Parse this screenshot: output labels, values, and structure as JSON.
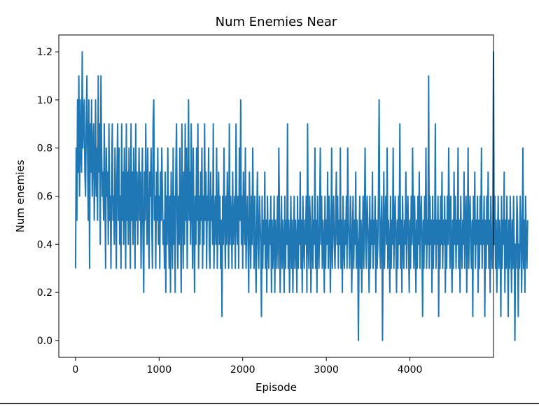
{
  "chart_data": {
    "type": "line",
    "title": "Num Enemies Near",
    "xlabel": "Episode",
    "ylabel": "Num enemies",
    "xlim": [
      -200,
      5000
    ],
    "ylim": [
      -0.07,
      1.27
    ],
    "xticks": [
      0,
      1000,
      2000,
      3000,
      4000
    ],
    "yticks": [
      0.0,
      0.2,
      0.4,
      0.6,
      0.8,
      1.0,
      1.2
    ],
    "xtick_labels": [
      "0",
      "1000",
      "2000",
      "3000",
      "4000"
    ],
    "ytick_labels": [
      "0.0",
      "0.2",
      "0.4",
      "0.6",
      "0.8",
      "1.0",
      "1.2"
    ],
    "grid": false,
    "series": [
      {
        "name": "Num enemies",
        "color": "#1f77b4",
        "x_start": 0,
        "x_step": 8,
        "values": [
          0.3,
          0.8,
          0.5,
          1.0,
          0.7,
          1.1,
          0.6,
          1.0,
          0.8,
          0.7,
          1.2,
          0.8,
          0.9,
          1.0,
          0.7,
          0.6,
          0.9,
          1.1,
          0.8,
          0.5,
          1.0,
          0.3,
          0.9,
          0.7,
          1.0,
          0.6,
          0.8,
          0.9,
          0.5,
          0.7,
          1.0,
          0.6,
          0.8,
          0.5,
          1.1,
          0.7,
          0.9,
          0.4,
          1.1,
          0.8,
          0.6,
          0.7,
          0.5,
          0.9,
          0.6,
          0.3,
          0.8,
          0.6,
          0.7,
          0.4,
          0.9,
          0.5,
          0.6,
          0.3,
          0.7,
          0.9,
          0.5,
          0.6,
          0.4,
          0.8,
          0.6,
          0.3,
          0.7,
          0.9,
          0.5,
          0.8,
          0.4,
          0.6,
          0.3,
          0.9,
          0.5,
          0.7,
          0.4,
          0.8,
          0.6,
          0.3,
          0.9,
          0.5,
          0.7,
          0.4,
          0.8,
          0.6,
          0.3,
          0.9,
          0.5,
          0.7,
          0.4,
          0.8,
          0.6,
          0.3,
          0.9,
          0.5,
          0.7,
          0.4,
          0.6,
          0.8,
          0.5,
          0.7,
          0.3,
          0.6,
          0.8,
          0.4,
          0.2,
          0.7,
          0.5,
          0.9,
          0.6,
          0.4,
          0.8,
          0.5,
          0.3,
          0.7,
          0.6,
          0.8,
          0.5,
          0.3,
          0.9,
          1.0,
          0.5,
          0.6,
          0.3,
          0.7,
          0.5,
          0.8,
          0.4,
          0.6,
          0.3,
          0.7,
          0.5,
          0.8,
          0.6,
          0.4,
          0.5,
          0.3,
          0.7,
          0.2,
          0.6,
          0.4,
          0.8,
          0.5,
          0.3,
          0.6,
          0.2,
          0.7,
          0.5,
          0.3,
          0.8,
          0.4,
          0.6,
          0.2,
          0.7,
          0.9,
          0.5,
          0.3,
          0.6,
          0.4,
          0.8,
          0.5,
          0.2,
          0.9,
          0.6,
          0.3,
          0.7,
          0.4,
          0.9,
          0.5,
          0.8,
          0.3,
          0.6,
          1.0,
          0.5,
          0.7,
          0.4,
          0.9,
          0.6,
          0.3,
          0.8,
          0.5,
          0.2,
          0.6,
          0.4,
          0.8,
          0.5,
          0.9,
          0.3,
          0.6,
          0.4,
          0.7,
          0.5,
          0.8,
          0.3,
          0.6,
          0.4,
          0.9,
          0.5,
          0.7,
          0.3,
          0.6,
          0.5,
          0.8,
          0.4,
          0.3,
          0.7,
          0.5,
          0.6,
          0.4,
          0.9,
          0.3,
          0.5,
          0.6,
          0.4,
          0.8,
          0.3,
          0.5,
          0.7,
          0.4,
          0.6,
          0.3,
          0.5,
          0.1,
          0.6,
          0.4,
          0.8,
          0.5,
          0.3,
          0.6,
          0.4,
          0.7,
          0.5,
          0.3,
          0.9,
          0.4,
          0.6,
          0.5,
          0.3,
          0.7,
          0.4,
          0.5,
          0.6,
          0.3,
          0.9,
          0.5,
          0.4,
          0.6,
          0.3,
          0.8,
          0.5,
          1.0,
          0.4,
          0.6,
          0.3,
          0.7,
          0.5,
          0.4,
          0.8,
          0.3,
          0.5,
          0.6,
          0.4,
          0.2,
          0.7,
          0.5,
          0.3,
          0.6,
          0.4,
          0.8,
          0.5,
          0.3,
          0.6,
          0.4,
          0.2,
          0.5,
          0.7,
          0.4,
          0.3,
          0.6,
          0.5,
          0.4,
          0.1,
          0.6,
          0.3,
          0.5,
          0.4,
          0.7,
          0.3,
          0.5,
          0.2,
          0.6,
          0.4,
          0.3,
          0.5,
          0.4,
          0.6,
          0.2,
          0.5,
          0.3,
          0.4,
          0.6,
          0.2,
          0.5,
          0.3,
          0.4,
          0.6,
          0.3,
          0.8,
          0.5,
          0.2,
          0.4,
          0.6,
          0.3,
          0.5,
          0.4,
          0.2,
          0.6,
          0.3,
          0.5,
          0.4,
          0.9,
          0.3,
          0.5,
          0.2,
          0.4,
          0.6,
          0.3,
          0.5,
          0.2,
          0.4,
          0.6,
          0.3,
          0.5,
          0.4,
          0.2,
          0.6,
          0.3,
          0.5,
          0.4,
          0.7,
          0.3,
          0.5,
          0.2,
          0.6,
          0.4,
          0.3,
          0.5,
          0.4,
          0.6,
          0.2,
          0.9,
          0.4,
          0.3,
          0.6,
          0.5,
          0.2,
          0.4,
          0.6,
          0.3,
          0.5,
          0.4,
          0.8,
          0.3,
          0.5,
          0.2,
          0.6,
          0.4,
          0.3,
          0.5,
          0.8,
          0.4,
          0.6,
          0.3,
          0.5,
          0.4,
          0.2,
          0.6,
          0.3,
          0.5,
          0.4,
          0.7,
          0.3,
          0.6,
          0.5,
          0.2,
          0.4,
          0.8,
          0.3,
          0.5,
          0.6,
          0.4,
          0.3,
          0.5,
          0.7,
          0.4,
          0.6,
          0.3,
          0.5,
          0.4,
          0.8,
          0.3,
          0.5,
          0.2,
          0.6,
          0.4,
          0.3,
          0.5,
          0.4,
          0.6,
          0.3,
          0.8,
          0.5,
          0.4,
          0.3,
          0.6,
          0.5,
          0.2,
          0.4,
          0.6,
          0.3,
          0.5,
          0.4,
          0.7,
          0.3,
          0.5,
          0.4,
          0.0,
          0.4,
          0.6,
          0.3,
          0.5,
          0.2,
          0.4,
          0.6,
          0.3,
          0.5,
          0.8,
          0.4,
          0.3,
          0.6,
          0.5,
          0.4,
          0.2,
          0.6,
          0.3,
          0.5,
          0.4,
          0.7,
          0.3,
          0.5,
          0.4,
          0.6,
          0.2,
          0.5,
          0.3,
          0.4,
          0.6,
          1.0,
          0.4,
          0.3,
          0.5,
          0.6,
          0.0,
          0.4,
          0.7,
          0.3,
          0.5,
          0.6,
          0.4,
          0.8,
          0.3,
          0.5,
          0.4,
          0.2,
          0.6,
          0.3,
          0.5,
          0.4,
          0.8,
          0.3,
          0.5,
          0.6,
          0.4,
          0.2,
          0.5,
          0.3,
          0.6,
          0.4,
          0.9,
          0.3,
          0.5,
          0.2,
          0.6,
          0.4,
          0.3,
          0.5,
          0.4,
          0.7,
          0.3,
          0.5,
          0.6,
          0.4,
          0.2,
          0.5,
          0.3,
          0.6,
          0.4,
          0.8,
          0.5,
          0.3,
          0.6,
          0.4,
          0.2,
          0.5,
          0.3,
          0.6,
          0.4,
          0.7,
          0.3,
          0.5,
          0.6,
          0.4,
          0.1,
          0.5,
          0.3,
          0.6,
          0.4,
          0.8,
          0.3,
          0.5,
          0.4,
          1.1,
          0.3,
          0.6,
          0.4,
          0.5,
          0.2,
          0.6,
          0.3,
          0.5,
          0.4,
          0.9,
          0.3,
          0.5,
          0.4,
          0.6,
          0.1,
          0.5,
          0.3,
          0.6,
          0.4,
          0.7,
          0.3,
          0.5,
          0.4,
          0.6,
          0.2,
          0.5,
          0.3,
          0.6,
          0.4,
          0.8,
          0.5,
          0.3,
          0.6,
          0.4,
          0.2,
          0.5,
          0.3,
          0.7,
          0.4,
          0.6,
          0.3,
          0.5,
          0.4,
          0.8,
          0.3,
          0.5,
          0.2,
          0.6,
          0.4,
          0.3,
          0.5,
          0.4,
          0.7,
          0.3,
          0.5,
          0.6,
          0.2,
          0.4,
          0.8,
          0.3,
          0.5,
          0.6,
          0.4,
          0.3,
          0.5,
          0.1,
          0.6,
          0.4,
          0.7,
          0.3,
          0.5,
          0.4,
          0.6,
          0.2,
          0.5,
          0.3,
          0.6,
          0.4,
          0.8,
          0.3,
          0.5,
          0.4,
          0.6,
          0.1,
          0.5,
          0.3,
          0.6,
          0.4,
          0.7,
          0.3,
          0.5,
          0.2,
          0.6,
          0.4,
          0.3,
          0.5,
          1.2,
          0.4,
          0.6,
          0.3,
          0.5,
          0.2,
          0.4,
          0.6,
          0.3,
          0.5,
          0.4,
          0.1,
          0.6,
          0.3,
          0.5,
          0.4,
          0.7,
          0.2,
          0.5,
          0.3,
          0.6,
          0.4,
          0.1,
          0.5,
          0.3,
          0.6,
          0.4,
          0.2,
          0.5,
          0.3,
          0.6,
          0.4,
          0.0,
          0.4,
          0.3,
          0.6,
          0.5,
          0.1,
          0.4,
          0.3,
          0.6,
          0.5,
          0.2,
          0.4,
          0.8,
          0.3,
          0.5,
          0.2,
          0.6,
          0.4,
          0.3,
          0.5
        ]
      }
    ]
  }
}
